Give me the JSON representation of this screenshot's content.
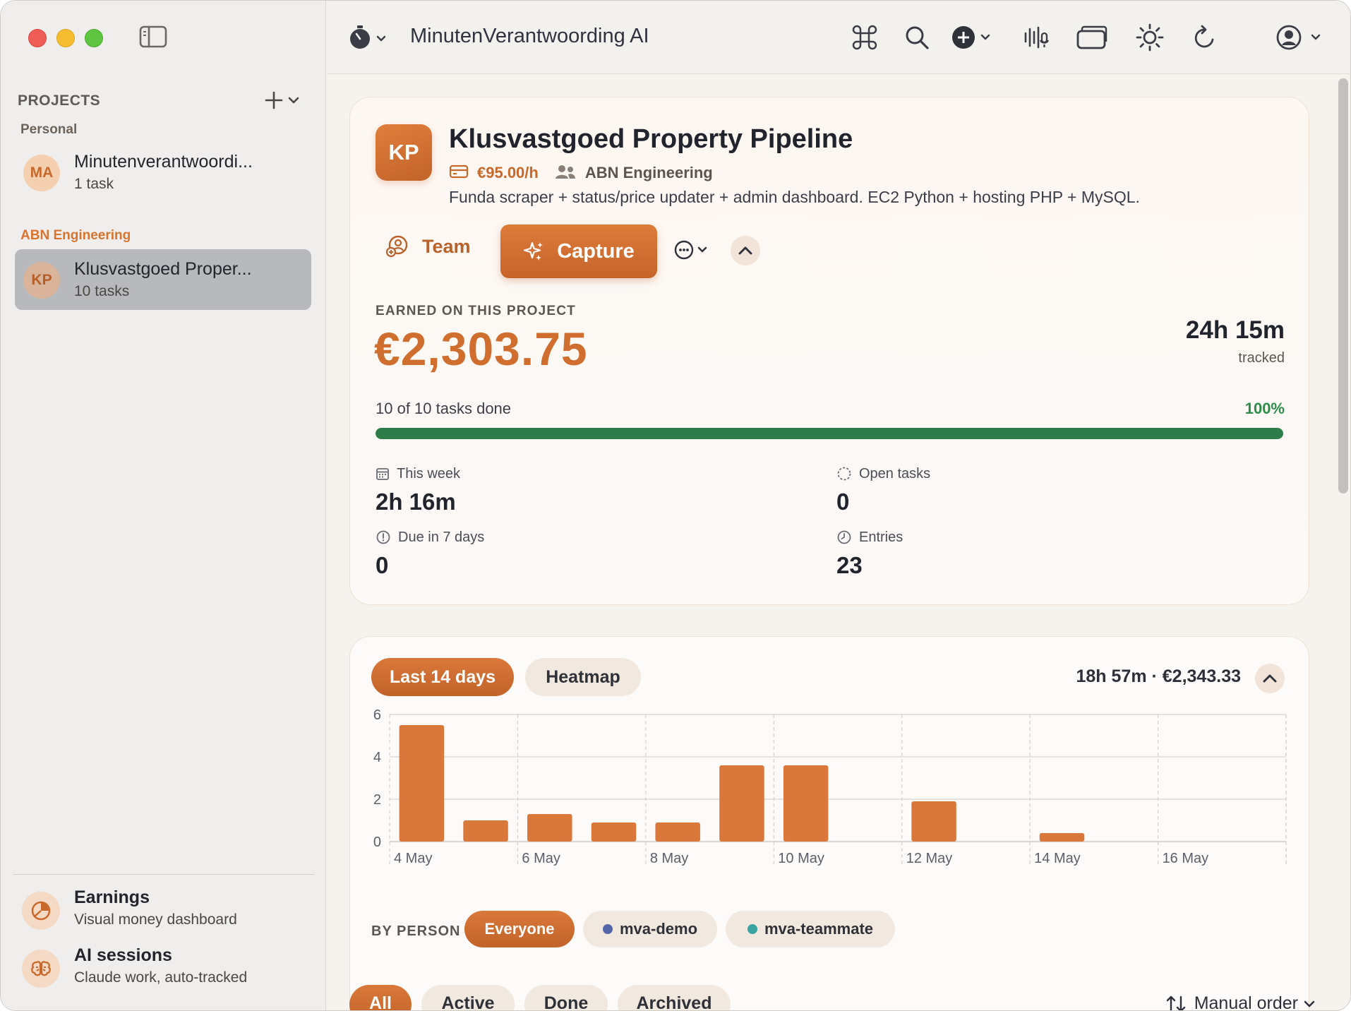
{
  "app": {
    "title": "MinutenVerantwoording AI",
    "accent": "#d9742f"
  },
  "sidebar": {
    "section_label": "PROJECTS",
    "groups": [
      {
        "label": "Personal",
        "projects": [
          {
            "initials": "MA",
            "name": "Minutenverantwoordi...",
            "sub": "1 task",
            "selected": false
          }
        ]
      },
      {
        "label": "ABN Engineering",
        "projects": [
          {
            "initials": "KP",
            "name": "Klusvastgoed Proper...",
            "sub": "10 tasks",
            "selected": true
          }
        ]
      }
    ],
    "bottom": [
      {
        "title": "Earnings",
        "sub": "Visual money dashboard",
        "icon": "pie-chart-icon"
      },
      {
        "title": "AI sessions",
        "sub": "Claude work, auto-tracked",
        "icon": "brain-icon"
      }
    ]
  },
  "toolbar": {
    "icons": [
      "timer-icon",
      "command-icon",
      "search-icon",
      "add-icon",
      "voice-icon",
      "windows-icon",
      "brightness-icon",
      "refresh-icon",
      "account-icon"
    ]
  },
  "project": {
    "initials": "KP",
    "title": "Klusvastgoed Property Pipeline",
    "rate": "€95.00/h",
    "client": "ABN Engineering",
    "description": "Funda scraper + status/price updater + admin dashboard. EC2 Python + hosting PHP + MySQL.",
    "team_label": "Team",
    "capture_label": "Capture",
    "earned_label": "EARNED ON THIS PROJECT",
    "earned_amount": "€2,303.75",
    "tracked_value": "24h 15m",
    "tracked_label": "tracked",
    "tasks_done_text": "10 of 10 tasks done",
    "tasks_pct_text": "100%",
    "progress_fraction": 1.0,
    "stats": {
      "this_week_label": "This week",
      "this_week_value": "2h 16m",
      "open_tasks_label": "Open tasks",
      "open_tasks_value": "0",
      "due_label": "Due in 7 days",
      "due_value": "0",
      "entries_label": "Entries",
      "entries_value": "23"
    }
  },
  "chart_panel": {
    "tab_last14": "Last 14 days",
    "tab_heatmap": "Heatmap",
    "summary": "18h 57m · €2,343.33",
    "by_person_label": "BY PERSON",
    "persons": [
      {
        "label": "Everyone",
        "active": true
      },
      {
        "label": "mva-demo",
        "color": "#5566a8",
        "active": false
      },
      {
        "label": "mva-teammate",
        "color": "#3aa5a0",
        "active": false
      }
    ]
  },
  "chart_data": {
    "type": "bar",
    "categories": [
      "4 May",
      "5 May",
      "6 May",
      "7 May",
      "8 May",
      "9 May",
      "10 May",
      "11 May",
      "12 May",
      "13 May",
      "14 May",
      "15 May",
      "16 May",
      "17 May"
    ],
    "values": [
      5.5,
      1.0,
      1.3,
      0.9,
      0.9,
      3.6,
      3.6,
      0,
      1.9,
      0,
      0.4,
      0,
      0,
      0
    ],
    "tick_labels": [
      "4 May",
      "6 May",
      "8 May",
      "10 May",
      "12 May",
      "14 May",
      "16 May"
    ],
    "y_ticks": [
      0,
      2,
      4,
      6
    ],
    "ylim": [
      0,
      6
    ],
    "bar_color": "#d9783a",
    "grid": true
  },
  "task_filters": {
    "tabs": [
      {
        "label": "All",
        "active": true
      },
      {
        "label": "Active",
        "active": false
      },
      {
        "label": "Done",
        "active": false
      },
      {
        "label": "Archived",
        "active": false
      }
    ],
    "sort_label": "Manual order"
  }
}
